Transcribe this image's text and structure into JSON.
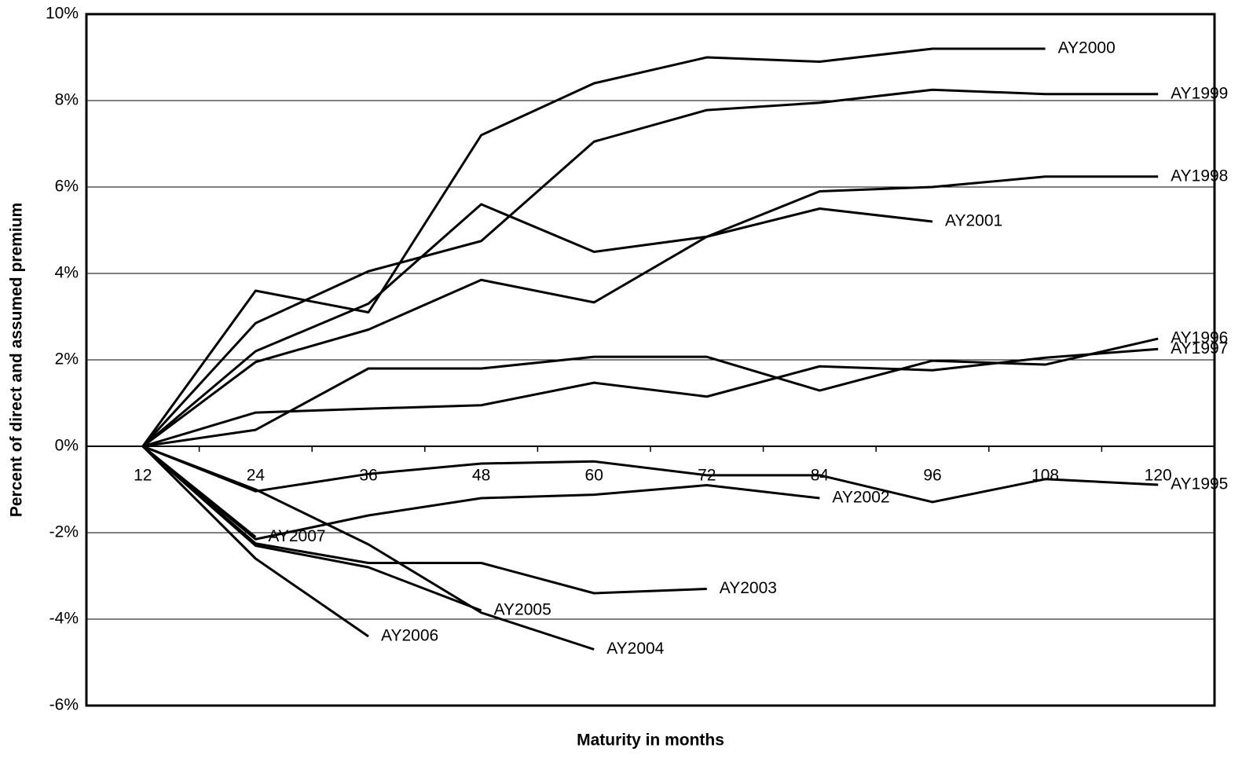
{
  "chart_data": {
    "type": "line",
    "x_label": "Maturity in months",
    "y_label": "Percent of direct and assumed premium",
    "categories": [
      "12",
      "24",
      "36",
      "48",
      "60",
      "72",
      "84",
      "96",
      "108",
      "120"
    ],
    "ylim": [
      -6,
      10
    ],
    "yticks": [
      {
        "value": -6,
        "label": "-6%"
      },
      {
        "value": -4,
        "label": "-4%"
      },
      {
        "value": -2,
        "label": "-2%"
      },
      {
        "value": 0,
        "label": "0%"
      },
      {
        "value": 2,
        "label": "2%"
      },
      {
        "value": 4,
        "label": "4%"
      },
      {
        "value": 6,
        "label": "6%"
      },
      {
        "value": 8,
        "label": "8%"
      },
      {
        "value": 10,
        "label": "10%"
      }
    ],
    "grid": true,
    "series": [
      {
        "name": "AY1995",
        "color": "#000000",
        "values": [
          0,
          -1.04,
          -0.64,
          -0.4,
          -0.35,
          -0.67,
          -0.67,
          -1.29,
          -0.76,
          -0.89
        ]
      },
      {
        "name": "AY1996",
        "color": "#000000",
        "values": [
          0,
          0.38,
          1.8,
          1.8,
          2.07,
          2.07,
          1.29,
          1.98,
          1.89,
          2.49
        ]
      },
      {
        "name": "AY1997",
        "color": "#000000",
        "values": [
          0,
          0.78,
          0.87,
          0.95,
          1.47,
          1.15,
          1.85,
          1.76,
          2.05,
          2.25
        ]
      },
      {
        "name": "AY1998",
        "color": "#000000",
        "values": [
          0,
          1.95,
          2.7,
          3.85,
          3.33,
          4.85,
          5.9,
          6.0,
          6.24,
          6.24
        ]
      },
      {
        "name": "AY1999",
        "color": "#000000",
        "values": [
          0,
          2.85,
          4.05,
          4.75,
          7.05,
          7.78,
          7.95,
          8.25,
          8.15,
          8.15
        ]
      },
      {
        "name": "AY2000",
        "color": "#000000",
        "values": [
          0,
          3.6,
          3.1,
          7.2,
          8.4,
          9.0,
          8.9,
          9.2,
          9.2,
          null
        ]
      },
      {
        "name": "AY2001",
        "color": "#000000",
        "values": [
          0,
          2.2,
          3.3,
          5.6,
          4.5,
          4.85,
          5.5,
          5.2,
          null,
          null
        ]
      },
      {
        "name": "AY2002",
        "color": "#000000",
        "values": [
          0,
          -2.15,
          -1.6,
          -1.2,
          -1.12,
          -0.9,
          -1.2,
          null,
          null,
          null
        ]
      },
      {
        "name": "AY2003",
        "color": "#000000",
        "values": [
          0,
          -2.25,
          -2.7,
          -2.7,
          -3.4,
          -3.3,
          null,
          null,
          null,
          null
        ]
      },
      {
        "name": "AY2004",
        "color": "#000000",
        "values": [
          0,
          -1.0,
          -2.27,
          -3.85,
          -4.7,
          null,
          null,
          null,
          null,
          null
        ]
      },
      {
        "name": "AY2005",
        "color": "#000000",
        "values": [
          0,
          -2.3,
          -2.8,
          -3.8,
          null,
          null,
          null,
          null,
          null,
          null
        ]
      },
      {
        "name": "AY2006",
        "color": "#000000",
        "values": [
          0,
          -2.6,
          -4.4,
          null,
          null,
          null,
          null,
          null,
          null,
          null
        ]
      },
      {
        "name": "AY2007",
        "color": "#000000",
        "values": [
          0,
          -2.1,
          null,
          null,
          null,
          null,
          null,
          null,
          null,
          null
        ]
      }
    ]
  }
}
